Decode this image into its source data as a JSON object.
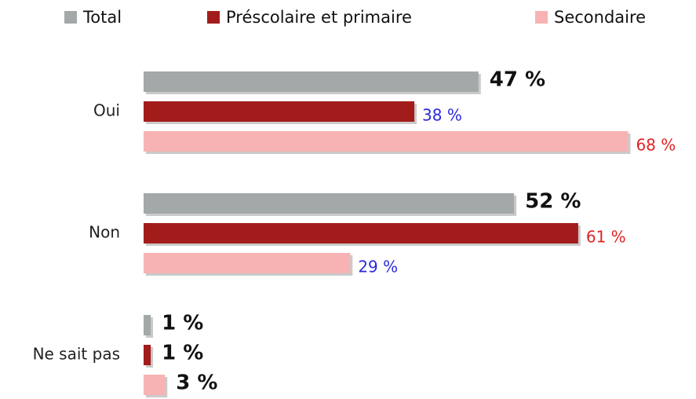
{
  "chart_data": {
    "type": "hbar",
    "categories": [
      "Oui",
      "Non",
      "Ne sait pas"
    ],
    "xlim": [
      0,
      100
    ],
    "series": [
      {
        "name": "Total",
        "color": "#a3a9a9",
        "values": [
          47,
          52,
          1
        ],
        "value_labels": [
          "47 %",
          "52 %",
          "1 %"
        ],
        "value_label_colors": [
          "#111111",
          "#111111",
          "#111111"
        ],
        "value_label_bold": [
          true,
          true,
          true
        ]
      },
      {
        "name": "Préscolaire et primaire",
        "color": "#a31c1c",
        "values": [
          38,
          61,
          1
        ],
        "value_labels": [
          "38 %",
          "61 %",
          "1 %"
        ],
        "value_label_colors": [
          "#2a2adf",
          "#e02424",
          "#111111"
        ],
        "value_label_bold": [
          false,
          false,
          true
        ]
      },
      {
        "name": "Secondaire",
        "color": "#f7b3b3",
        "values": [
          68,
          29,
          3
        ],
        "value_labels": [
          "68 %",
          "29 %",
          "3 %"
        ],
        "value_label_colors": [
          "#e02424",
          "#2a2adf",
          "#111111"
        ],
        "value_label_bold": [
          false,
          false,
          true
        ]
      }
    ]
  }
}
